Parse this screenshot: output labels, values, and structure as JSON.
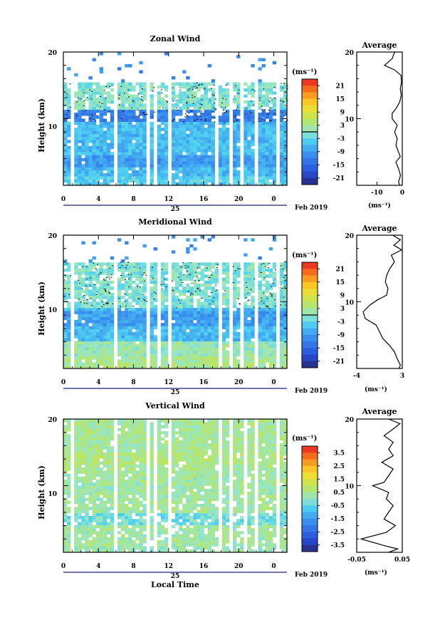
{
  "date_label": "Feb 2019",
  "xlabel": "Local Time",
  "chart_data": [
    {
      "type": "heatmap",
      "title": "Zonal Wind",
      "ylabel": "Height (km)",
      "ylim": [
        0,
        20
      ],
      "yticks": [
        "20",
        "10"
      ],
      "xticks": [
        "0",
        "4",
        "8",
        "12",
        "16",
        "20",
        "0"
      ],
      "xlim": [
        0,
        25.5
      ],
      "day_label": "25",
      "colorbar": {
        "unit": "(ms⁻¹)",
        "range": [
          -24,
          24
        ],
        "ticks": [
          "21",
          "15",
          "9",
          "3",
          "-3",
          "-9",
          "-15",
          "-21"
        ]
      },
      "field": {
        "low": {
          "top": 1.5,
          "value": -4
        },
        "band1": {
          "center": 3.5,
          "value": -9
        },
        "mid": {
          "top": 9.5,
          "value": -6
        },
        "band2": {
          "center": 10.5,
          "value": -12
        },
        "upper_top": 15.5,
        "upper_value": -1
      },
      "gaps": [
        1.2,
        5.9,
        9.8,
        10.6,
        12.1,
        17.6,
        19.0,
        20.5,
        22.0,
        24.4
      ],
      "average": {
        "title": "Average",
        "xlabel": "(ms⁻¹)",
        "xlim": [
          -18,
          0
        ],
        "xticks": [
          "-10",
          "0"
        ],
        "yticks": [
          "20",
          "10"
        ],
        "profile": [
          [
            20,
            -3
          ],
          [
            19,
            -4
          ],
          [
            18,
            -7
          ],
          [
            17.3,
            -3
          ],
          [
            16.5,
            -0.5
          ],
          [
            15.5,
            -0.3
          ],
          [
            14.5,
            -0.8
          ],
          [
            13.5,
            -0.4
          ],
          [
            12.5,
            -1
          ],
          [
            11.5,
            -2.5
          ],
          [
            10.8,
            -4
          ],
          [
            10,
            -4
          ],
          [
            9,
            -2
          ],
          [
            8,
            -3
          ],
          [
            7,
            -2
          ],
          [
            6,
            -2.5
          ],
          [
            5,
            -1.5
          ],
          [
            4.3,
            -0.8
          ],
          [
            3.5,
            -2.5
          ],
          [
            2.5,
            -1.5
          ],
          [
            1.5,
            -0.7
          ],
          [
            0.5,
            -1.5
          ],
          [
            0,
            -1
          ]
        ]
      }
    },
    {
      "type": "heatmap",
      "title": "Meridional Wind",
      "ylabel": "Height (km)",
      "ylim": [
        0,
        20
      ],
      "yticks": [
        "20",
        "10"
      ],
      "xticks": [
        "0",
        "4",
        "8",
        "12",
        "16",
        "20",
        "0"
      ],
      "xlim": [
        0,
        25.5
      ],
      "day_label": "25",
      "colorbar": {
        "unit": "(ms⁻¹)",
        "range": [
          -24,
          24
        ],
        "ticks": [
          "21",
          "15",
          "9",
          "3",
          "-3",
          "-9",
          "-15",
          "-21"
        ]
      },
      "field": {
        "low": {
          "top": 2.0,
          "value": 3
        },
        "band1": {
          "center": 3.0,
          "value": 1
        },
        "mid": {
          "top": 9.0,
          "value": -6
        },
        "band2": {
          "center": 7.5,
          "value": -9
        },
        "upper_top": 16.0,
        "upper_value": -1
      },
      "gaps": [
        1.0,
        5.9,
        9.8,
        10.8,
        12.0,
        17.8,
        19.0,
        20.4,
        22.0,
        24.4
      ],
      "average": {
        "title": "Average",
        "xlabel": "(ms⁻¹)",
        "xlim": [
          -4,
          3
        ],
        "xticks": [
          "-4",
          "3"
        ],
        "yticks": [
          "20",
          "10"
        ],
        "profile": [
          [
            20,
            1.5
          ],
          [
            19.3,
            2.7
          ],
          [
            18.5,
            1.7
          ],
          [
            17.8,
            2.9
          ],
          [
            17,
            1.3
          ],
          [
            16,
            1.8
          ],
          [
            15,
            1.1
          ],
          [
            14,
            0.6
          ],
          [
            13,
            0.4
          ],
          [
            12,
            0.8
          ],
          [
            11,
            0.6
          ],
          [
            10.3,
            -0.8
          ],
          [
            9.5,
            -2
          ],
          [
            8.5,
            -3
          ],
          [
            7.5,
            -2.7
          ],
          [
            6.5,
            -1
          ],
          [
            5.5,
            -0.5
          ],
          [
            4.5,
            0
          ],
          [
            3.5,
            1
          ],
          [
            2.5,
            1.8
          ],
          [
            1.5,
            2.2
          ],
          [
            0.5,
            2.7
          ],
          [
            0,
            2.5
          ]
        ]
      }
    },
    {
      "type": "heatmap",
      "title": "Vertical Wind",
      "ylabel": "Height (km)",
      "ylim": [
        0,
        20
      ],
      "yticks": [
        "20",
        "10"
      ],
      "xticks": [
        "0",
        "4",
        "8",
        "12",
        "16",
        "20",
        "0"
      ],
      "xlim": [
        0,
        25.5
      ],
      "day_label": "25",
      "colorbar": {
        "unit": "(ms⁻¹)",
        "range": [
          -4,
          4
        ],
        "ticks": [
          "3.5",
          "2.5",
          "1.5",
          "0.5",
          "-0.5",
          "-1.5",
          "-2.5",
          "-3.5"
        ]
      },
      "field": {
        "low": {
          "top": 1.0,
          "value": 0.2
        },
        "band1": {
          "center": 5.0,
          "value": -0.3
        },
        "mid": {
          "top": 12.0,
          "value": 0.3
        },
        "band2": {
          "center": 14.0,
          "value": 0.6
        },
        "upper_top": 20.0,
        "upper_value": 0.4
      },
      "gaps": [
        1.0,
        5.9,
        9.6,
        10.6,
        12.0,
        18.0,
        19.1,
        20.6,
        22.0,
        24.4
      ],
      "average": {
        "title": "Average",
        "xlabel": "(ms⁻¹)",
        "xlim": [
          -0.05,
          0.05
        ],
        "xticks": [
          "-0.05",
          "0.05"
        ],
        "yticks": [
          "20",
          "10"
        ],
        "profile": [
          [
            20,
            0.02
          ],
          [
            19.3,
            0.045
          ],
          [
            18.5,
            0.03
          ],
          [
            17.5,
            0.01
          ],
          [
            16.5,
            0.03
          ],
          [
            15.5,
            0.02
          ],
          [
            14.5,
            0.03
          ],
          [
            13.5,
            0.005
          ],
          [
            12.5,
            0.03
          ],
          [
            11.5,
            0.02
          ],
          [
            10.5,
            0.01
          ],
          [
            10,
            -0.015
          ],
          [
            9,
            0.02
          ],
          [
            8,
            0.015
          ],
          [
            7,
            0.03
          ],
          [
            6,
            0.02
          ],
          [
            5,
            0.01
          ],
          [
            4,
            0.035
          ],
          [
            3,
            0.015
          ],
          [
            2,
            -0.04
          ],
          [
            1,
            0.01
          ],
          [
            0.5,
            0.04
          ],
          [
            0,
            0.02
          ]
        ]
      }
    }
  ]
}
